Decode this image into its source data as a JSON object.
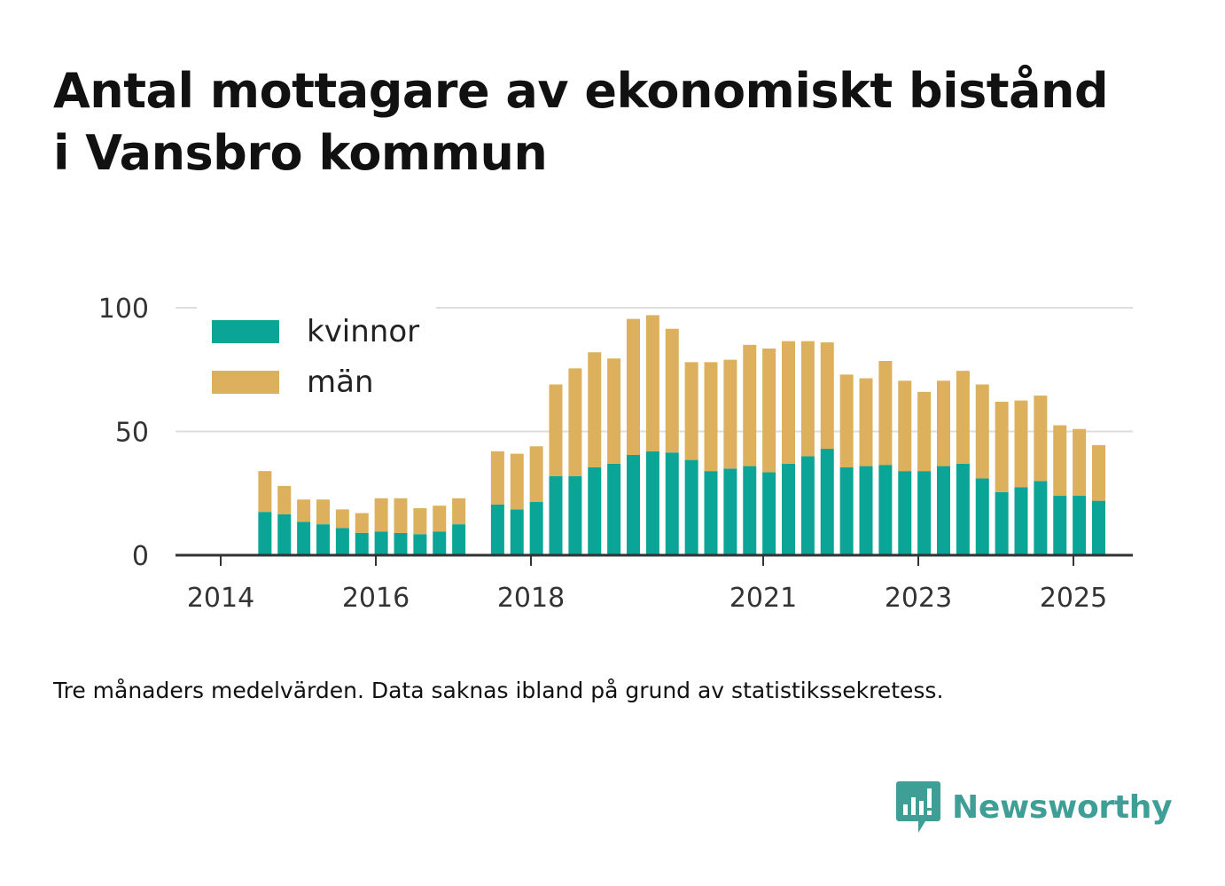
{
  "title_line1": "Antal mottagare av ekonomiskt bistånd",
  "title_line2": "i Vansbro kommun",
  "footnote": "Tre månaders medelvärden. Data saknas ibland på grund av statistikssekretess.",
  "brand": {
    "name": "Newsworthy",
    "icon": "bar-chart-speech-bubble-icon",
    "color": "#3f9f96"
  },
  "colors": {
    "kvinnor": "#0aa596",
    "man": "#dcb05c",
    "grid": "#dddddd",
    "axis": "#333333",
    "text": "#111111"
  },
  "chart_data": {
    "type": "bar",
    "stacked": true,
    "ylim": [
      0,
      100
    ],
    "yticks": [
      0,
      50,
      100
    ],
    "xticks": [
      "2014",
      "2016",
      "2018",
      "2021",
      "2023",
      "2025"
    ],
    "legend_position": "top-left",
    "grid": "horizontal",
    "series": [
      {
        "name": "kvinnor",
        "color": "#0aa596",
        "values": [
          null,
          17.5,
          16.5,
          13.5,
          12.5,
          11,
          9,
          9.5,
          9,
          8.5,
          9.5,
          12.5,
          null,
          20.5,
          18.5,
          21.5,
          32,
          32,
          35.5,
          37,
          40.5,
          42,
          41.5,
          38.5,
          34,
          35,
          36,
          33.5,
          37,
          40,
          43,
          35.5,
          36,
          36.5,
          34,
          34,
          36,
          37,
          31,
          25.5,
          27.5,
          30,
          24,
          24,
          22
        ]
      },
      {
        "name": "män",
        "color": "#dcb05c",
        "values": [
          null,
          16.5,
          11.5,
          9,
          10,
          7.5,
          8,
          13.5,
          14,
          10.5,
          10.5,
          10.5,
          null,
          21.5,
          22.5,
          22.5,
          37,
          43.5,
          46.5,
          42.5,
          55,
          55,
          50,
          39.5,
          44,
          44,
          49,
          50,
          49.5,
          46.5,
          43,
          37.5,
          35.5,
          42,
          36.5,
          32,
          34.5,
          37.5,
          38,
          36.5,
          35,
          34.5,
          28.5,
          27,
          22.5
        ]
      }
    ]
  }
}
